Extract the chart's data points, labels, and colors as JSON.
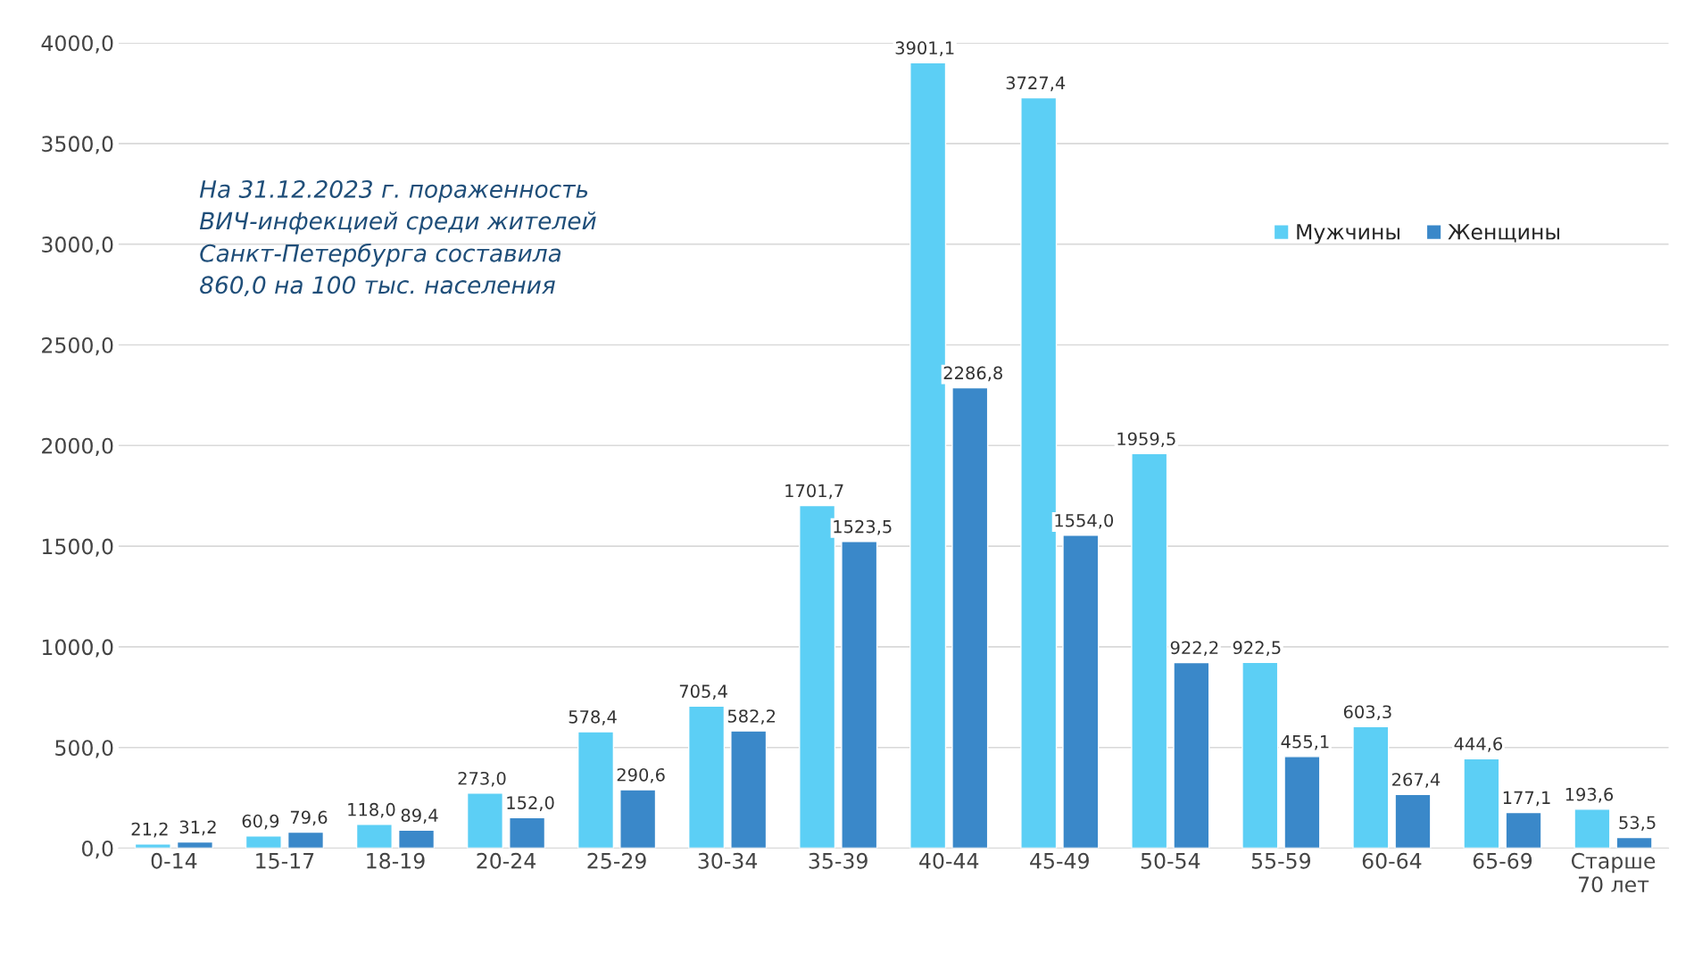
{
  "chart_data": {
    "type": "bar",
    "categories": [
      "0-14",
      "15-17",
      "18-19",
      "20-24",
      "25-29",
      "30-34",
      "35-39",
      "40-44",
      "45-49",
      "50-54",
      "55-59",
      "60-64",
      "65-69",
      "Старше\n70 лет"
    ],
    "series": [
      {
        "name": "Мужчины",
        "color": "#5ccff5",
        "values": [
          21.2,
          60.9,
          118.0,
          273.0,
          578.4,
          705.4,
          1701.7,
          3901.1,
          3727.4,
          1959.5,
          922.5,
          603.3,
          444.6,
          193.6
        ],
        "value_labels": [
          "21,2",
          "60,9",
          "118,0",
          "273,0",
          "578,4",
          "705,4",
          "1701,7",
          "3901,1",
          "3727,4",
          "1959,5",
          "922,5",
          "603,3",
          "444,6",
          "193,6"
        ]
      },
      {
        "name": "Женщины",
        "color": "#3a88c9",
        "values": [
          31.2,
          79.6,
          89.4,
          152.0,
          290.6,
          582.2,
          1523.5,
          2286.8,
          1554.0,
          922.2,
          455.1,
          267.4,
          177.1,
          53.5
        ],
        "value_labels": [
          "31,2",
          "79,6",
          "89,4",
          "152,0",
          "290,6",
          "582,2",
          "1523,5",
          "2286,8",
          "1554,0",
          "922,2",
          "455,1",
          "267,4",
          "177,1",
          "53,5"
        ]
      }
    ],
    "ylim": [
      0,
      4000
    ],
    "yticks": [
      {
        "value": 0,
        "label": "0,0"
      },
      {
        "value": 500,
        "label": "500,0"
      },
      {
        "value": 1000,
        "label": "1000,0"
      },
      {
        "value": 1500,
        "label": "1500,0"
      },
      {
        "value": 2000,
        "label": "2000,0"
      },
      {
        "value": 2500,
        "label": "2500,0"
      },
      {
        "value": 3000,
        "label": "3000,0"
      },
      {
        "value": 3500,
        "label": "3500,0"
      },
      {
        "value": 4000,
        "label": "4000,0"
      }
    ],
    "grid": "y",
    "legend": "top right",
    "annotations": [
      "На 31.12.2023 г. пораженность\nВИЧ-инфекцией среди жителей\nСанкт-Петербурга составила\n860,0 на 100 тыс. населения"
    ]
  }
}
